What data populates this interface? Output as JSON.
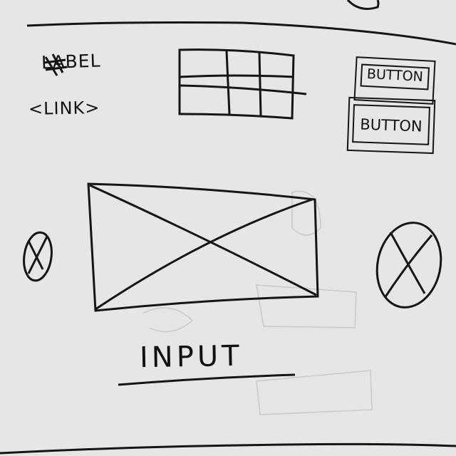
{
  "label": {
    "text": "LABEL"
  },
  "link": {
    "text": "<LINK>"
  },
  "buttons": [
    {
      "label": "BUTTON"
    },
    {
      "label": "BUTTON"
    }
  ],
  "input": {
    "label": "INPUT"
  },
  "icons": {
    "label_icon": "hash-icon",
    "image_placeholder": "image-placeholder-icon",
    "left_circle": "circle-x-icon",
    "right_circle": "circle-x-icon"
  },
  "colors": {
    "paper": "#e6e6e6",
    "ink": "#151515"
  }
}
